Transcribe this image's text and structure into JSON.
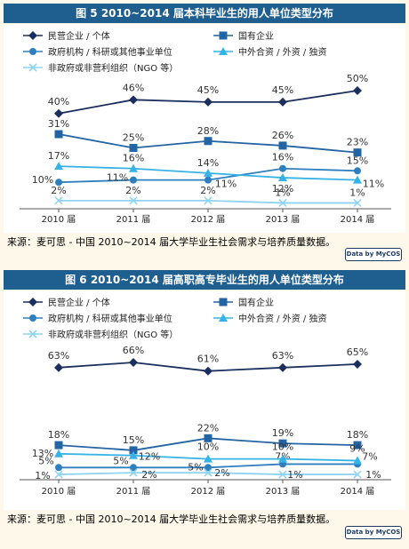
{
  "charts": [
    {
      "title": "图 5  2010~2014 届本科毕业生的用人单位类型分布",
      "source": "来源：麦可思 - 中国 2010~2014 届大学毕业生社会需求与培养质量数据。",
      "badge": "Data by MyCOS"
    },
    {
      "title": "图 6  2010~2014 届高职高专毕业生的用人单位类型分布",
      "source": "来源：麦可思 - 中国 2010~2014 届大学毕业生社会需求与培养质量数据。",
      "badge": "Data by MyCOS"
    }
  ],
  "chart_data": [
    {
      "type": "line",
      "title": "图 5  2010~2014 届本科毕业生的用人单位类型分布",
      "categories": [
        "2010 届",
        "2011 届",
        "2012 届",
        "2013 届",
        "2014 届"
      ],
      "value_suffix": "%",
      "grid": false,
      "legend": "top, two columns",
      "series": [
        {
          "name": "民营企业 / 个体",
          "values": [
            40,
            46,
            45,
            45,
            50
          ],
          "color": "#1b2f5e",
          "marker": "diamond"
        },
        {
          "name": "国有企业",
          "values": [
            31,
            25,
            28,
            26,
            23
          ],
          "color": "#2264a4",
          "marker": "square"
        },
        {
          "name": "政府机构 / 科研或其他事业单位",
          "values": [
            10,
            11,
            11,
            16,
            15
          ],
          "color": "#2f7fbf",
          "marker": "circle"
        },
        {
          "name": "中外合资 / 外资 / 独资",
          "values": [
            17,
            16,
            14,
            12,
            11
          ],
          "color": "#36b3e6",
          "marker": "triangle"
        },
        {
          "name": "非政府或非营利组织（NGO 等）",
          "values": [
            2,
            2,
            2,
            1,
            1
          ],
          "color": "#8fd3f0",
          "marker": "x"
        }
      ]
    },
    {
      "type": "line",
      "title": "图 6  2010~2014 届高职高专毕业生的用人单位类型分布",
      "categories": [
        "2010 届",
        "2011 届",
        "2012 届",
        "2013 届",
        "2014 届"
      ],
      "value_suffix": "%",
      "grid": false,
      "legend": "top, two columns",
      "series": [
        {
          "name": "民营企业 / 个体",
          "values": [
            63,
            66,
            61,
            63,
            65
          ],
          "color": "#1b2f5e",
          "marker": "diamond"
        },
        {
          "name": "国有企业",
          "values": [
            18,
            15,
            22,
            19,
            18
          ],
          "color": "#2264a4",
          "marker": "square"
        },
        {
          "name": "政府机构 / 科研或其他事业单位",
          "values": [
            5,
            5,
            5,
            7,
            7
          ],
          "color": "#2f7fbf",
          "marker": "circle"
        },
        {
          "name": "中外合资 / 外资 / 独资",
          "values": [
            13,
            12,
            10,
            10,
            9
          ],
          "color": "#36b3e6",
          "marker": "triangle"
        },
        {
          "name": "非政府或非营利组织（NGO 等）",
          "values": [
            1,
            2,
            2,
            1,
            1
          ],
          "color": "#8fd3f0",
          "marker": "x"
        }
      ]
    }
  ]
}
